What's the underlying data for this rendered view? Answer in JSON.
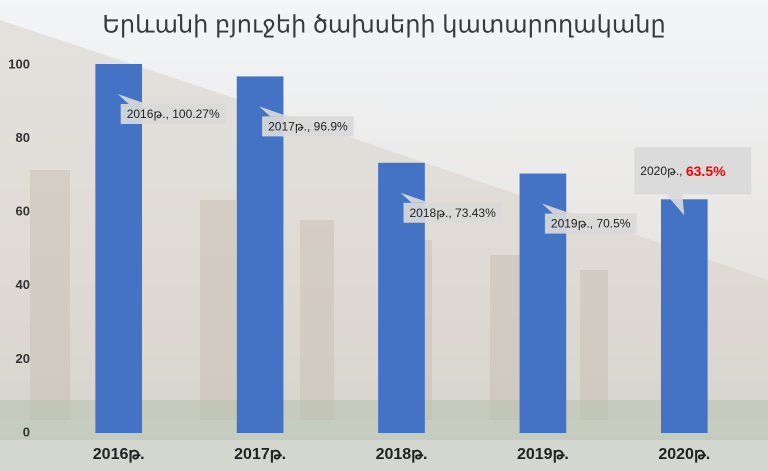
{
  "chart_data": {
    "type": "bar",
    "title": "Երևանի բյուջեի ծախսերի կատարողականը",
    "categories": [
      "2016թ.",
      "2017թ.",
      "2018թ.",
      "2019թ.",
      "2020թ."
    ],
    "values": [
      100.27,
      96.9,
      73.43,
      70.5,
      63.5
    ],
    "value_labels": [
      "2016թ., 100.27%",
      "2017թ., 96.9%",
      "2018թ., 73.43%",
      "2019թ., 70.5%",
      "2020թ., 63.5%"
    ],
    "color": "#4472c4",
    "ylim": [
      0,
      100
    ],
    "yticks": [
      0,
      20,
      40,
      60,
      80,
      100
    ],
    "grid": false,
    "highlight": {
      "index": 4,
      "color": "#ff0000"
    }
  }
}
